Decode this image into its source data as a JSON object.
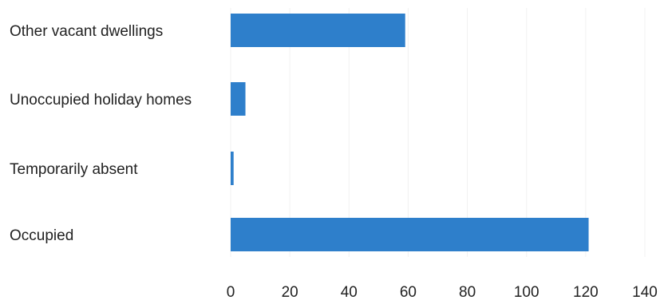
{
  "chart_data": {
    "type": "bar",
    "orientation": "horizontal",
    "categories": [
      "Other vacant dwellings",
      "Unoccupied holiday homes",
      "Temporarily absent",
      "Occupied"
    ],
    "values": [
      59,
      5,
      1,
      121
    ],
    "xlim": [
      0,
      140
    ],
    "xticks": [
      "0",
      "20",
      "40",
      "60",
      "80",
      "100",
      "120",
      "140"
    ],
    "grid": true,
    "legend": "none",
    "bar_color": "#2E7FCB"
  }
}
